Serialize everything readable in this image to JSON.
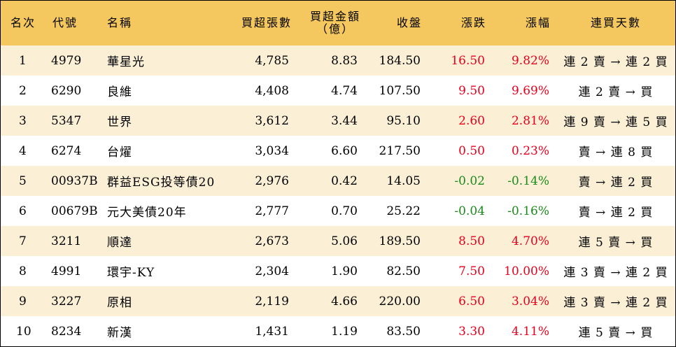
{
  "headers": {
    "rank": "名次",
    "code": "代號",
    "name": "名稱",
    "volume": "買超張數",
    "amount_line1": "買超金額",
    "amount_line2": "（億）",
    "close": "收盤",
    "change": "漲跌",
    "percent": "漲幅",
    "streak": "連買天數"
  },
  "colors": {
    "header_bg": "#f5c85f",
    "stripe_bg": "#fbf0d6",
    "up": "#e8001c",
    "down": "#1a8a1a"
  },
  "rows": [
    {
      "rank": "1",
      "code": "4979",
      "name": "華星光",
      "volume": "4,785",
      "amount": "8.83",
      "close": "184.50",
      "change": "16.50",
      "percent": "9.82%",
      "streak": "連 2 賣 → 連 2 買",
      "dir": "up"
    },
    {
      "rank": "2",
      "code": "6290",
      "name": "良維",
      "volume": "4,408",
      "amount": "4.74",
      "close": "107.50",
      "change": "9.50",
      "percent": "9.69%",
      "streak": "連 2 賣 → 買",
      "dir": "up"
    },
    {
      "rank": "3",
      "code": "5347",
      "name": "世界",
      "volume": "3,612",
      "amount": "3.44",
      "close": "95.10",
      "change": "2.60",
      "percent": "2.81%",
      "streak": "連 9 賣 → 連 5 買",
      "dir": "up"
    },
    {
      "rank": "4",
      "code": "6274",
      "name": "台燿",
      "volume": "3,034",
      "amount": "6.60",
      "close": "217.50",
      "change": "0.50",
      "percent": "0.23%",
      "streak": "賣 → 連 8 買",
      "dir": "up"
    },
    {
      "rank": "5",
      "code": "00937B",
      "name": "群益ESG投等債20",
      "volume": "2,976",
      "amount": "0.42",
      "close": "14.05",
      "change": "-0.02",
      "percent": "-0.14%",
      "streak": "賣 → 連 2 買",
      "dir": "down"
    },
    {
      "rank": "6",
      "code": "00679B",
      "name": "元大美債20年",
      "volume": "2,777",
      "amount": "0.70",
      "close": "25.22",
      "change": "-0.04",
      "percent": "-0.16%",
      "streak": "賣 → 連 2 買",
      "dir": "down"
    },
    {
      "rank": "7",
      "code": "3211",
      "name": "順達",
      "volume": "2,673",
      "amount": "5.06",
      "close": "189.50",
      "change": "8.50",
      "percent": "4.70%",
      "streak": "連 5 賣 → 買",
      "dir": "up"
    },
    {
      "rank": "8",
      "code": "4991",
      "name": "環宇-KY",
      "volume": "2,304",
      "amount": "1.90",
      "close": "82.50",
      "change": "7.50",
      "percent": "10.00%",
      "streak": "連 3 賣 → 連 2 買",
      "dir": "up"
    },
    {
      "rank": "9",
      "code": "3227",
      "name": "原相",
      "volume": "2,119",
      "amount": "4.66",
      "close": "220.00",
      "change": "6.50",
      "percent": "3.04%",
      "streak": "連 3 賣 → 連 2 買",
      "dir": "up"
    },
    {
      "rank": "10",
      "code": "8234",
      "name": "新漢",
      "volume": "1,431",
      "amount": "1.19",
      "close": "83.50",
      "change": "3.30",
      "percent": "4.11%",
      "streak": "連 5 賣 → 買",
      "dir": "up"
    }
  ]
}
